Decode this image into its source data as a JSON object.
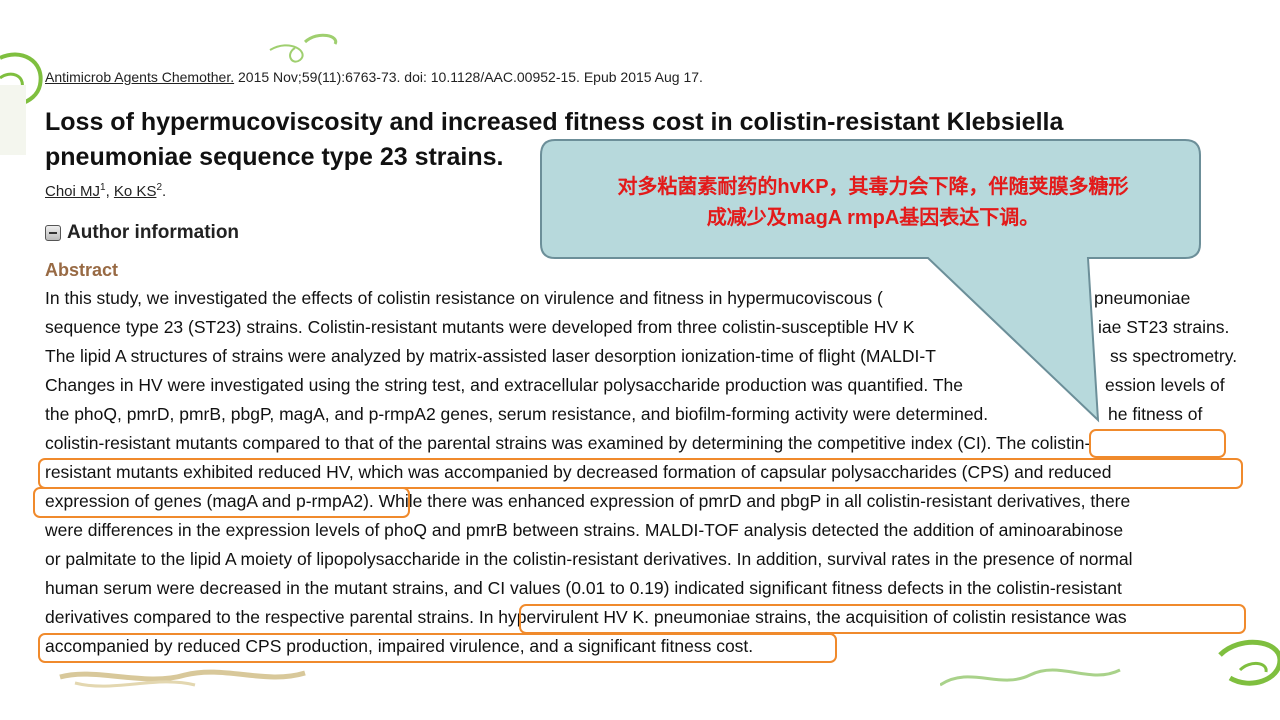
{
  "citation": {
    "journal": "Antimicrob Agents Chemother.",
    "details": " 2015 Nov;59(11):6763-73. doi: 10.1128/AAC.00952-15. Epub 2015 Aug 17."
  },
  "title": "Loss of hypermucoviscosity and increased fitness cost in colistin-resistant Klebsiella pneumoniae sequence type 23 strains.",
  "authors": [
    {
      "name": "Choi MJ",
      "sup": "1"
    },
    {
      "name": "Ko KS",
      "sup": "2"
    }
  ],
  "authors_sep": ", ",
  "authors_end": ".",
  "author_information": "Author information",
  "abstract_heading": "Abstract",
  "abstract_lines": [
    "In this study, we investigated the effects of colistin resistance on virulence and fitness in hypermucoviscous (",
    "sequence type 23 (ST23) strains. Colistin-resistant mutants were developed from three colistin-susceptible HV K",
    "The lipid A structures of strains were analyzed by matrix-assisted laser desorption ionization-time of flight (MALDI-T",
    "Changes in HV were investigated using the string test, and extracellular polysaccharide production was quantified. The",
    "the phoQ, pmrD, pmrB, pbgP, magA, and p-rmpA2 genes, serum resistance, and biofilm-forming activity were determined.",
    "colistin-resistant mutants compared to that of the parental strains was examined by determining the competitive index (CI). The colistin-",
    "resistant mutants exhibited reduced HV, which was accompanied by decreased formation of capsular polysaccharides (CPS) and reduced",
    "expression of genes (magA and p-rmpA2). While there was enhanced expression of pmrD and pbgP in all colistin-resistant derivatives, there",
    "were differences in the expression levels of phoQ and pmrB between strains. MALDI-TOF analysis detected the addition of aminoarabinose",
    "or palmitate to the lipid A moiety of lipopolysaccharide in the colistin-resistant derivatives. In addition, survival rates in the presence of normal",
    "human serum were decreased in the mutant strains, and CI values (0.01 to 0.19) indicated significant fitness defects in the colistin-resistant",
    "derivatives compared to the respective parental strains. In hypervirulent HV K. pneumoniae strains, the acquisition of colistin resistance was",
    "accompanied by reduced CPS production, impaired virulence, and a significant fitness cost."
  ],
  "abstract_tails": [
    "pneumoniae",
    "iae ST23 strains.",
    "ss spectrometry.",
    "ession levels of",
    "he fitness of"
  ],
  "callout": {
    "line1": "对多粘菌素耐药的hvKP，其毒力会下降，伴随荚膜多糖形",
    "line2": "成减少及magA rmpA基因表达下调。"
  },
  "colors": {
    "highlight": "#f08a2c",
    "callout_fill": "#b7d9dc",
    "callout_text": "#e31a1a",
    "abstract_heading": "#986a44"
  }
}
